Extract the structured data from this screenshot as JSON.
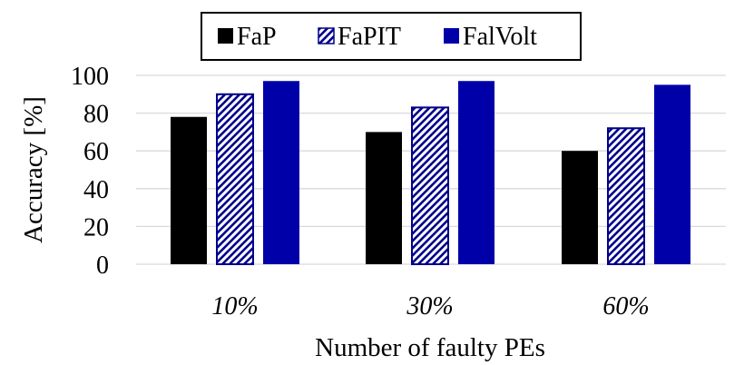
{
  "chart_data": {
    "type": "bar",
    "categories": [
      "10%",
      "30%",
      "60%"
    ],
    "series": [
      {
        "name": "FaP",
        "values": [
          78,
          70,
          60
        ],
        "color": "#000000",
        "pattern": "solid"
      },
      {
        "name": "FaPIT",
        "values": [
          90,
          83,
          72
        ],
        "color": "#00008B",
        "pattern": "diagonal-hatch"
      },
      {
        "name": "FalVolt",
        "values": [
          97,
          97,
          95
        ],
        "color": "#0000A8",
        "pattern": "solid"
      }
    ],
    "title": "",
    "xlabel": "Number of faulty PEs",
    "ylabel": "Accuracy [%]",
    "ylim": [
      0,
      100
    ],
    "yticks": [
      0,
      20,
      40,
      60,
      80,
      100
    ],
    "grid": "horizontal",
    "legend_position": "top-center"
  }
}
